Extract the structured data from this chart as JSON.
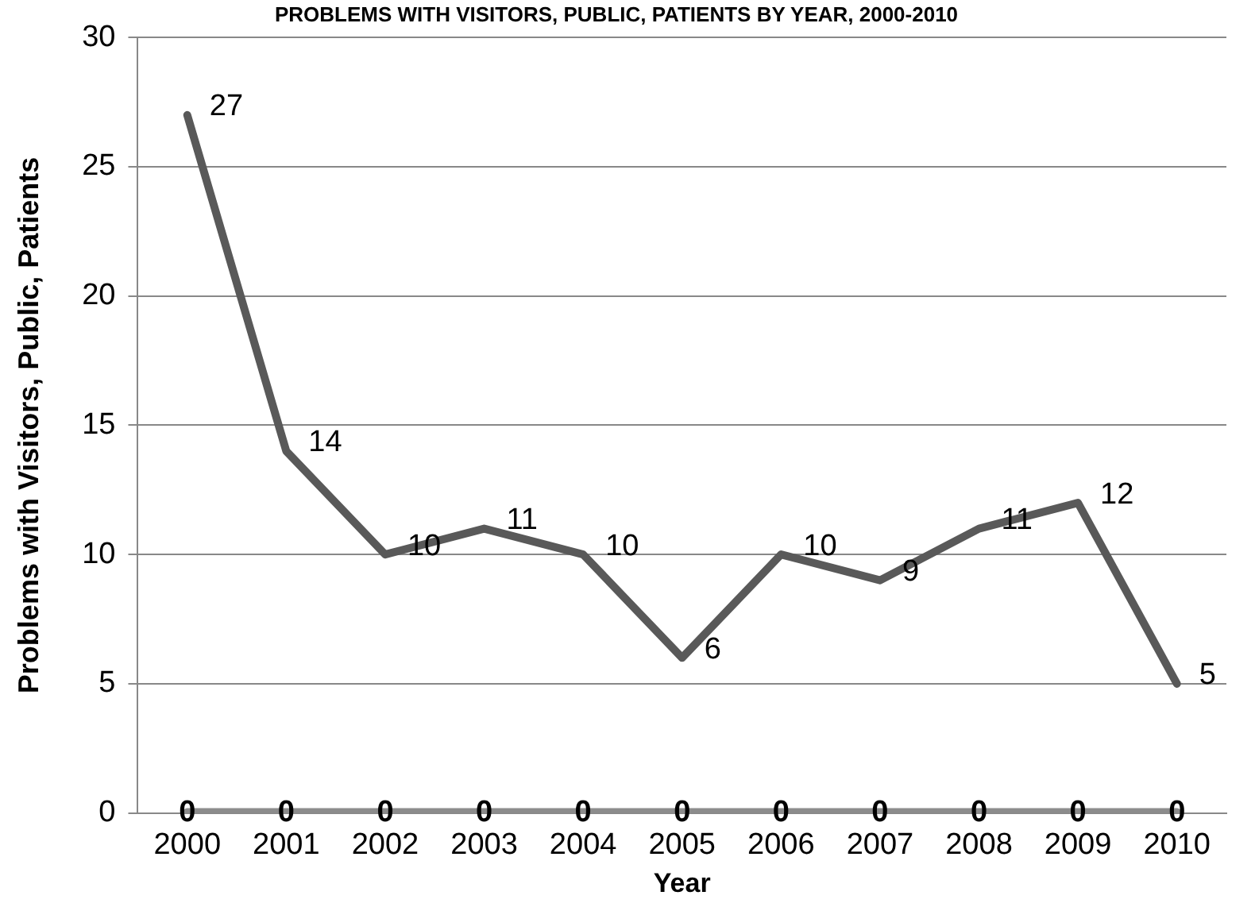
{
  "chart_data": {
    "type": "line",
    "title": "PROBLEMS WITH VISITORS, PUBLIC, PATIENTS BY YEAR, 2000-2010",
    "xlabel": "Year",
    "ylabel": "Problems with Visitors, Public, Patients",
    "categories": [
      "2000",
      "2001",
      "2002",
      "2003",
      "2004",
      "2005",
      "2006",
      "2007",
      "2008",
      "2009",
      "2010"
    ],
    "series": [
      {
        "color": "#595959",
        "values": [
          27,
          14,
          10,
          11,
          10,
          6,
          10,
          9,
          11,
          12,
          5
        ]
      },
      {
        "color": "#8c8c8c",
        "values": [
          0,
          0,
          0,
          0,
          0,
          0,
          0,
          0,
          0,
          0,
          0
        ]
      }
    ],
    "ylim": [
      0,
      30
    ],
    "yticks": [
      0,
      5,
      10,
      15,
      20,
      25,
      30
    ],
    "grid": "y",
    "legend": false,
    "data_labels": true,
    "marker": "none",
    "line_style": "solid"
  }
}
